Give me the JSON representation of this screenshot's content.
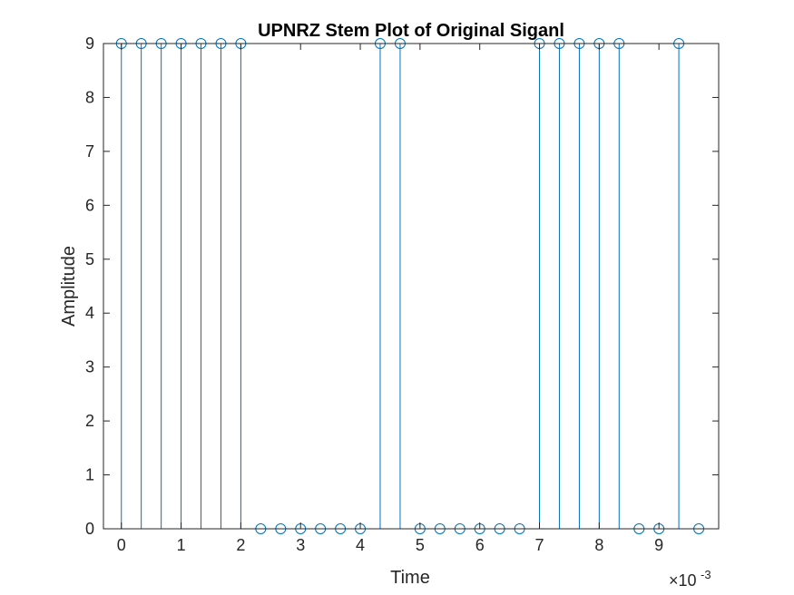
{
  "chart_data": {
    "type": "stem",
    "title": "UPNRZ Stem Plot of Original Siganl",
    "xlabel": "Time",
    "ylabel": "Amplitude",
    "x_exponent_label": "×10",
    "x_exponent_power": "-3",
    "xlim": [
      -0.0003,
      0.01
    ],
    "ylim": [
      0,
      9
    ],
    "xtick_values": [
      0,
      0.001,
      0.002,
      0.003,
      0.004,
      0.005,
      0.006,
      0.007,
      0.008,
      0.009
    ],
    "xtick_labels": [
      "0",
      "1",
      "2",
      "3",
      "4",
      "5",
      "6",
      "7",
      "8",
      "9"
    ],
    "ytick_values": [
      0,
      1,
      2,
      3,
      4,
      5,
      6,
      7,
      8,
      9
    ],
    "ytick_labels": [
      "0",
      "1",
      "2",
      "3",
      "4",
      "5",
      "6",
      "7",
      "8",
      "9"
    ],
    "grid": false,
    "box": true,
    "color": "#0072BD",
    "series": [
      {
        "x": [
          0,
          0.000333,
          0.000667,
          0.001,
          0.001333,
          0.001667,
          0.002,
          0.002333,
          0.002667,
          0.003,
          0.003333,
          0.003667,
          0.004,
          0.004333,
          0.004667,
          0.005,
          0.005333,
          0.005667,
          0.006,
          0.006333,
          0.006667,
          0.007,
          0.007333,
          0.007667,
          0.008,
          0.008333,
          0.008667,
          0.009,
          0.009333,
          0.009667
        ],
        "y": [
          9,
          9,
          9,
          9,
          9,
          9,
          9,
          0,
          0,
          0,
          0,
          0,
          0,
          9,
          9,
          0,
          0,
          0,
          0,
          0,
          0,
          9,
          9,
          9,
          9,
          9,
          0,
          0,
          9,
          0
        ]
      }
    ]
  }
}
